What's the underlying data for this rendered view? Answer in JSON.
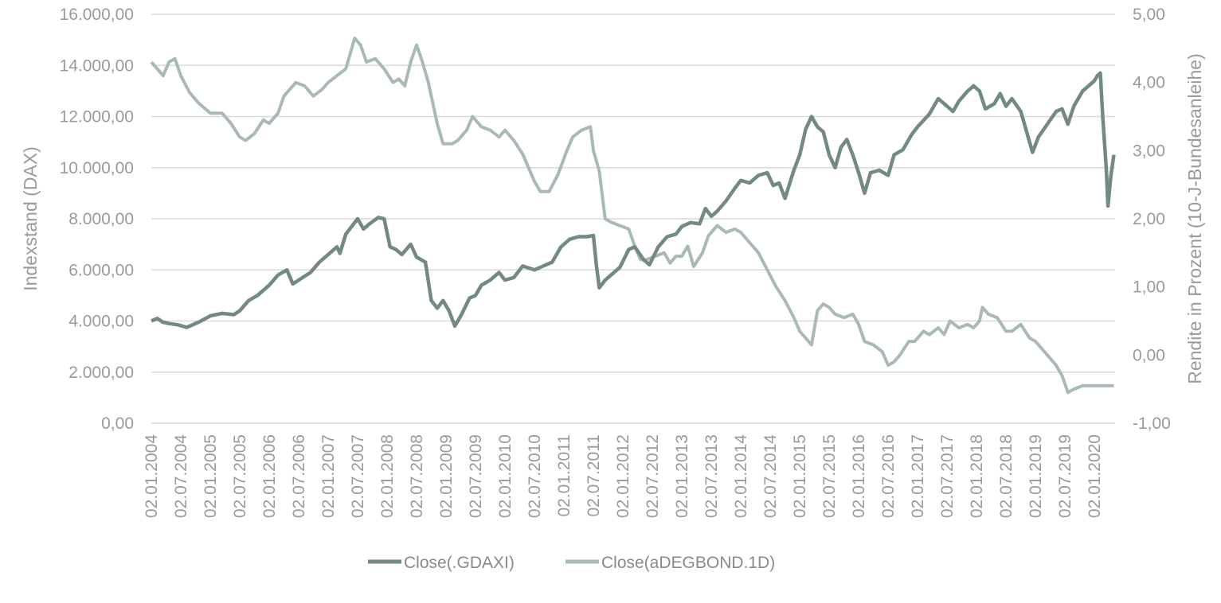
{
  "chart_data": {
    "type": "line",
    "colors": {
      "dax": "#738a7e",
      "bond": "#a9bbb1",
      "grid": "#d9d9d9",
      "text": "#9a9a9a"
    },
    "y_left": {
      "label": "Indexstand  (DAX)",
      "range": [
        0,
        16000
      ],
      "ticks": [
        0,
        2000,
        4000,
        6000,
        8000,
        10000,
        12000,
        14000,
        16000
      ],
      "tick_labels": [
        "0,00",
        "2.000,00",
        "4.000,00",
        "6.000,00",
        "8.000,00",
        "10.000,00",
        "12.000,00",
        "14.000,00",
        "16.000,00"
      ]
    },
    "y_right": {
      "label": "Rendite in Prozent (10-J-Bundesanleihe)",
      "range": [
        -1,
        5
      ],
      "ticks": [
        -1,
        0,
        1,
        2,
        3,
        4,
        5
      ],
      "tick_labels": [
        "-1,00",
        "0,00",
        "1,00",
        "2,00",
        "3,00",
        "4,00",
        "5,00"
      ]
    },
    "x": {
      "range": [
        2004.0,
        2020.35
      ],
      "ticks": [
        2004.0,
        2004.5,
        2005.0,
        2005.5,
        2006.0,
        2006.5,
        2007.0,
        2007.5,
        2008.0,
        2008.5,
        2009.0,
        2009.5,
        2010.0,
        2010.5,
        2011.0,
        2011.5,
        2012.0,
        2012.5,
        2013.0,
        2013.5,
        2014.0,
        2014.5,
        2015.0,
        2015.5,
        2016.0,
        2016.5,
        2017.0,
        2017.5,
        2018.0,
        2018.5,
        2019.0,
        2019.5,
        2020.0
      ],
      "tick_labels": [
        "02.01.2004",
        "02.07.2004",
        "02.01.2005",
        "02.07.2005",
        "02.01.2006",
        "02.07.2006",
        "02.01.2007",
        "02.07.2007",
        "02.01.2008",
        "02.07.2008",
        "02.01.2009",
        "02.07.2009",
        "02.01.2010",
        "02.07.2010",
        "02.01.2011",
        "02.07.2011",
        "02.01.2012",
        "02.07.2012",
        "02.01.2013",
        "02.07.2013",
        "02.01.2014",
        "02.07.2014",
        "02.01.2015",
        "02.07.2015",
        "02.01.2016",
        "02.07.2016",
        "02.01.2017",
        "02.07.2017",
        "02.01.2018",
        "02.07.2018",
        "02.01.2019",
        "02.07.2019",
        "02.01.2020"
      ]
    },
    "series": [
      {
        "name": "Close(.GDAXI)",
        "axis": "left",
        "points": [
          [
            2004.0,
            4000
          ],
          [
            2004.1,
            4100
          ],
          [
            2004.2,
            3950
          ],
          [
            2004.3,
            3900
          ],
          [
            2004.45,
            3850
          ],
          [
            2004.6,
            3750
          ],
          [
            2004.8,
            3950
          ],
          [
            2005.0,
            4200
          ],
          [
            2005.2,
            4300
          ],
          [
            2005.4,
            4250
          ],
          [
            2005.5,
            4400
          ],
          [
            2005.65,
            4800
          ],
          [
            2005.8,
            5000
          ],
          [
            2006.0,
            5400
          ],
          [
            2006.15,
            5800
          ],
          [
            2006.3,
            6000
          ],
          [
            2006.4,
            5450
          ],
          [
            2006.5,
            5600
          ],
          [
            2006.7,
            5900
          ],
          [
            2006.85,
            6300
          ],
          [
            2007.0,
            6600
          ],
          [
            2007.15,
            6900
          ],
          [
            2007.2,
            6650
          ],
          [
            2007.3,
            7400
          ],
          [
            2007.5,
            8000
          ],
          [
            2007.6,
            7600
          ],
          [
            2007.7,
            7800
          ],
          [
            2007.85,
            8050
          ],
          [
            2007.95,
            8000
          ],
          [
            2008.05,
            6900
          ],
          [
            2008.15,
            6800
          ],
          [
            2008.25,
            6600
          ],
          [
            2008.4,
            7000
          ],
          [
            2008.5,
            6500
          ],
          [
            2008.65,
            6300
          ],
          [
            2008.75,
            4800
          ],
          [
            2008.85,
            4500
          ],
          [
            2008.95,
            4800
          ],
          [
            2009.05,
            4400
          ],
          [
            2009.15,
            3800
          ],
          [
            2009.25,
            4200
          ],
          [
            2009.4,
            4900
          ],
          [
            2009.5,
            5000
          ],
          [
            2009.6,
            5400
          ],
          [
            2009.75,
            5600
          ],
          [
            2009.9,
            5900
          ],
          [
            2010.0,
            5600
          ],
          [
            2010.15,
            5700
          ],
          [
            2010.3,
            6150
          ],
          [
            2010.5,
            6000
          ],
          [
            2010.6,
            6100
          ],
          [
            2010.8,
            6300
          ],
          [
            2010.95,
            6900
          ],
          [
            2011.1,
            7200
          ],
          [
            2011.25,
            7300
          ],
          [
            2011.4,
            7300
          ],
          [
            2011.5,
            7350
          ],
          [
            2011.55,
            6200
          ],
          [
            2011.6,
            5300
          ],
          [
            2011.7,
            5600
          ],
          [
            2011.85,
            5900
          ],
          [
            2011.95,
            6100
          ],
          [
            2012.1,
            6800
          ],
          [
            2012.2,
            6900
          ],
          [
            2012.35,
            6400
          ],
          [
            2012.45,
            6200
          ],
          [
            2012.6,
            6900
          ],
          [
            2012.75,
            7300
          ],
          [
            2012.9,
            7400
          ],
          [
            2013.0,
            7700
          ],
          [
            2013.15,
            7850
          ],
          [
            2013.3,
            7800
          ],
          [
            2013.4,
            8400
          ],
          [
            2013.5,
            8100
          ],
          [
            2013.6,
            8300
          ],
          [
            2013.75,
            8700
          ],
          [
            2013.9,
            9200
          ],
          [
            2014.0,
            9500
          ],
          [
            2014.15,
            9400
          ],
          [
            2014.3,
            9700
          ],
          [
            2014.45,
            9800
          ],
          [
            2014.55,
            9300
          ],
          [
            2014.65,
            9400
          ],
          [
            2014.75,
            8800
          ],
          [
            2014.9,
            9900
          ],
          [
            2015.0,
            10500
          ],
          [
            2015.1,
            11500
          ],
          [
            2015.2,
            12000
          ],
          [
            2015.3,
            11600
          ],
          [
            2015.4,
            11400
          ],
          [
            2015.5,
            10500
          ],
          [
            2015.6,
            10000
          ],
          [
            2015.7,
            10800
          ],
          [
            2015.8,
            11100
          ],
          [
            2015.9,
            10500
          ],
          [
            2016.0,
            9800
          ],
          [
            2016.1,
            9000
          ],
          [
            2016.2,
            9800
          ],
          [
            2016.35,
            9900
          ],
          [
            2016.5,
            9700
          ],
          [
            2016.6,
            10500
          ],
          [
            2016.75,
            10700
          ],
          [
            2016.9,
            11300
          ],
          [
            2017.0,
            11600
          ],
          [
            2017.2,
            12100
          ],
          [
            2017.35,
            12700
          ],
          [
            2017.5,
            12400
          ],
          [
            2017.6,
            12200
          ],
          [
            2017.7,
            12600
          ],
          [
            2017.85,
            13000
          ],
          [
            2017.95,
            13200
          ],
          [
            2018.05,
            13000
          ],
          [
            2018.15,
            12300
          ],
          [
            2018.3,
            12500
          ],
          [
            2018.4,
            12900
          ],
          [
            2018.5,
            12400
          ],
          [
            2018.6,
            12700
          ],
          [
            2018.75,
            12200
          ],
          [
            2018.85,
            11400
          ],
          [
            2018.95,
            10600
          ],
          [
            2019.05,
            11200
          ],
          [
            2019.2,
            11700
          ],
          [
            2019.35,
            12200
          ],
          [
            2019.45,
            12300
          ],
          [
            2019.55,
            11700
          ],
          [
            2019.65,
            12400
          ],
          [
            2019.8,
            13000
          ],
          [
            2019.9,
            13200
          ],
          [
            2020.0,
            13400
          ],
          [
            2020.05,
            13600
          ],
          [
            2020.1,
            13700
          ],
          [
            2020.14,
            12000
          ],
          [
            2020.2,
            10000
          ],
          [
            2020.23,
            8500
          ],
          [
            2020.28,
            9700
          ],
          [
            2020.33,
            10500
          ]
        ]
      },
      {
        "name": "Close(aDEGBOND.1D)",
        "axis": "right",
        "points": [
          [
            2004.0,
            4.3
          ],
          [
            2004.1,
            4.2
          ],
          [
            2004.2,
            4.1
          ],
          [
            2004.3,
            4.3
          ],
          [
            2004.4,
            4.35
          ],
          [
            2004.5,
            4.1
          ],
          [
            2004.65,
            3.85
          ],
          [
            2004.8,
            3.7
          ],
          [
            2005.0,
            3.55
          ],
          [
            2005.2,
            3.55
          ],
          [
            2005.35,
            3.4
          ],
          [
            2005.5,
            3.2
          ],
          [
            2005.6,
            3.15
          ],
          [
            2005.75,
            3.25
          ],
          [
            2005.9,
            3.45
          ],
          [
            2006.0,
            3.4
          ],
          [
            2006.15,
            3.55
          ],
          [
            2006.25,
            3.8
          ],
          [
            2006.45,
            4.0
          ],
          [
            2006.6,
            3.95
          ],
          [
            2006.75,
            3.8
          ],
          [
            2006.9,
            3.9
          ],
          [
            2007.0,
            4.0
          ],
          [
            2007.15,
            4.1
          ],
          [
            2007.3,
            4.2
          ],
          [
            2007.45,
            4.65
          ],
          [
            2007.55,
            4.55
          ],
          [
            2007.65,
            4.3
          ],
          [
            2007.8,
            4.35
          ],
          [
            2007.95,
            4.2
          ],
          [
            2008.1,
            4.0
          ],
          [
            2008.2,
            4.05
          ],
          [
            2008.3,
            3.95
          ],
          [
            2008.4,
            4.3
          ],
          [
            2008.5,
            4.55
          ],
          [
            2008.6,
            4.3
          ],
          [
            2008.7,
            4.0
          ],
          [
            2008.85,
            3.4
          ],
          [
            2008.95,
            3.1
          ],
          [
            2009.1,
            3.1
          ],
          [
            2009.2,
            3.15
          ],
          [
            2009.35,
            3.3
          ],
          [
            2009.45,
            3.5
          ],
          [
            2009.6,
            3.35
          ],
          [
            2009.75,
            3.3
          ],
          [
            2009.9,
            3.2
          ],
          [
            2010.0,
            3.3
          ],
          [
            2010.15,
            3.15
          ],
          [
            2010.3,
            2.95
          ],
          [
            2010.4,
            2.75
          ],
          [
            2010.5,
            2.55
          ],
          [
            2010.6,
            2.4
          ],
          [
            2010.75,
            2.4
          ],
          [
            2010.9,
            2.65
          ],
          [
            2011.05,
            3.0
          ],
          [
            2011.15,
            3.2
          ],
          [
            2011.3,
            3.3
          ],
          [
            2011.45,
            3.35
          ],
          [
            2011.5,
            3.0
          ],
          [
            2011.6,
            2.7
          ],
          [
            2011.7,
            2.0
          ],
          [
            2011.8,
            1.95
          ],
          [
            2011.95,
            1.9
          ],
          [
            2012.1,
            1.85
          ],
          [
            2012.2,
            1.6
          ],
          [
            2012.3,
            1.4
          ],
          [
            2012.4,
            1.4
          ],
          [
            2012.55,
            1.45
          ],
          [
            2012.7,
            1.5
          ],
          [
            2012.8,
            1.35
          ],
          [
            2012.9,
            1.45
          ],
          [
            2013.0,
            1.45
          ],
          [
            2013.1,
            1.6
          ],
          [
            2013.2,
            1.3
          ],
          [
            2013.35,
            1.5
          ],
          [
            2013.45,
            1.75
          ],
          [
            2013.6,
            1.9
          ],
          [
            2013.75,
            1.8
          ],
          [
            2013.9,
            1.85
          ],
          [
            2014.0,
            1.8
          ],
          [
            2014.15,
            1.65
          ],
          [
            2014.3,
            1.5
          ],
          [
            2014.45,
            1.25
          ],
          [
            2014.6,
            1.0
          ],
          [
            2014.75,
            0.8
          ],
          [
            2014.9,
            0.55
          ],
          [
            2015.0,
            0.35
          ],
          [
            2015.1,
            0.25
          ],
          [
            2015.2,
            0.15
          ],
          [
            2015.3,
            0.65
          ],
          [
            2015.4,
            0.75
          ],
          [
            2015.5,
            0.7
          ],
          [
            2015.6,
            0.6
          ],
          [
            2015.75,
            0.55
          ],
          [
            2015.9,
            0.6
          ],
          [
            2016.0,
            0.45
          ],
          [
            2016.1,
            0.2
          ],
          [
            2016.25,
            0.15
          ],
          [
            2016.4,
            0.05
          ],
          [
            2016.5,
            -0.15
          ],
          [
            2016.6,
            -0.1
          ],
          [
            2016.7,
            0.0
          ],
          [
            2016.85,
            0.2
          ],
          [
            2016.95,
            0.2
          ],
          [
            2017.1,
            0.35
          ],
          [
            2017.2,
            0.3
          ],
          [
            2017.35,
            0.4
          ],
          [
            2017.45,
            0.3
          ],
          [
            2017.55,
            0.5
          ],
          [
            2017.7,
            0.4
          ],
          [
            2017.85,
            0.45
          ],
          [
            2017.95,
            0.4
          ],
          [
            2018.05,
            0.5
          ],
          [
            2018.1,
            0.7
          ],
          [
            2018.2,
            0.6
          ],
          [
            2018.35,
            0.55
          ],
          [
            2018.5,
            0.35
          ],
          [
            2018.6,
            0.35
          ],
          [
            2018.75,
            0.45
          ],
          [
            2018.9,
            0.25
          ],
          [
            2019.0,
            0.2
          ],
          [
            2019.1,
            0.1
          ],
          [
            2019.2,
            0.0
          ],
          [
            2019.35,
            -0.15
          ],
          [
            2019.45,
            -0.3
          ],
          [
            2019.55,
            -0.55
          ],
          [
            2019.65,
            -0.5
          ],
          [
            2019.8,
            -0.45
          ],
          [
            2019.95,
            -0.45
          ],
          [
            2020.1,
            -0.45
          ],
          [
            2020.33,
            -0.45
          ]
        ]
      }
    ],
    "legend": {
      "position": "bottom-center",
      "items": [
        {
          "label": "Close(.GDAXI)",
          "series": 0
        },
        {
          "label": "Close(aDEGBOND.1D)",
          "series": 1
        }
      ]
    },
    "grid": true
  }
}
